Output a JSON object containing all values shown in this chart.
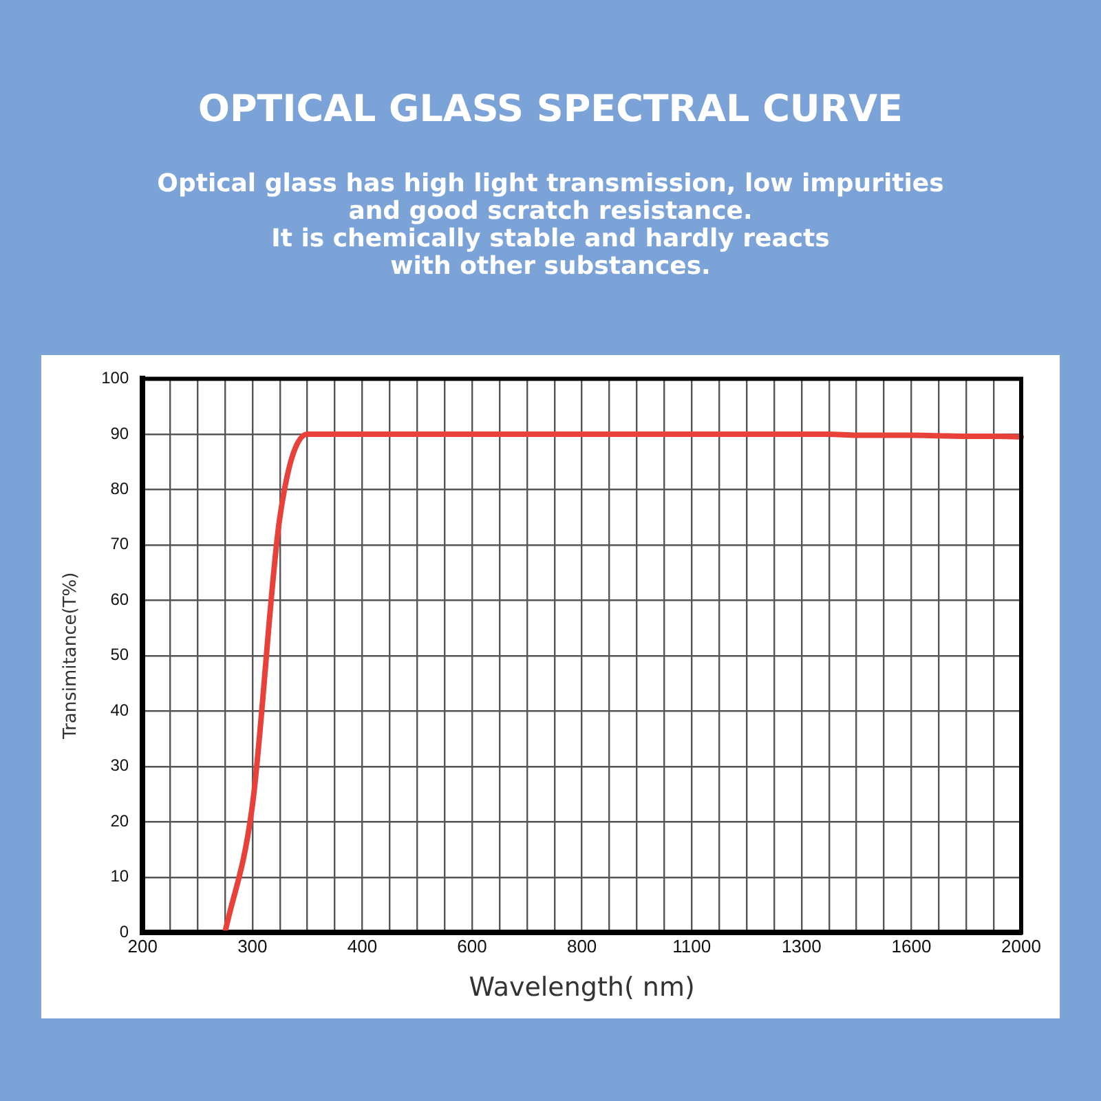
{
  "chart_data": {
    "type": "line",
    "title": "OPTICAL GLASS SPECTRAL CURVE",
    "subtitle": "Optical glass has high light transmission, low impurities\nand good scratch resistance.\nIt is chemically stable and hardly reacts\nwith other substances.",
    "xlabel": "Wavelength( nm)",
    "ylabel": "Transimitance(T%)",
    "categories": [
      "200",
      null,
      null,
      null,
      "300",
      null,
      null,
      null,
      "400",
      null,
      null,
      null,
      "600",
      null,
      null,
      null,
      "800",
      null,
      null,
      null,
      "1100",
      null,
      null,
      null,
      "1300",
      null,
      null,
      null,
      "1600",
      null,
      null,
      null,
      "2000"
    ],
    "series": [
      {
        "color": "#e8413a",
        "values": [
          null,
          null,
          null,
          0,
          23,
          75,
          90,
          90,
          90,
          90,
          90,
          90,
          90,
          90,
          90,
          90,
          90,
          90,
          90,
          90,
          90,
          90,
          90,
          90,
          90,
          90,
          89.8,
          89.8,
          89.8,
          89.7,
          89.6,
          89.6,
          89.5
        ]
      }
    ],
    "ylim": [
      0,
      100
    ],
    "yticks": [
      0,
      10,
      20,
      30,
      40,
      50,
      60,
      70,
      80,
      90,
      100
    ],
    "grid": true,
    "legend": false,
    "marker": "none",
    "line_style": "solid"
  }
}
